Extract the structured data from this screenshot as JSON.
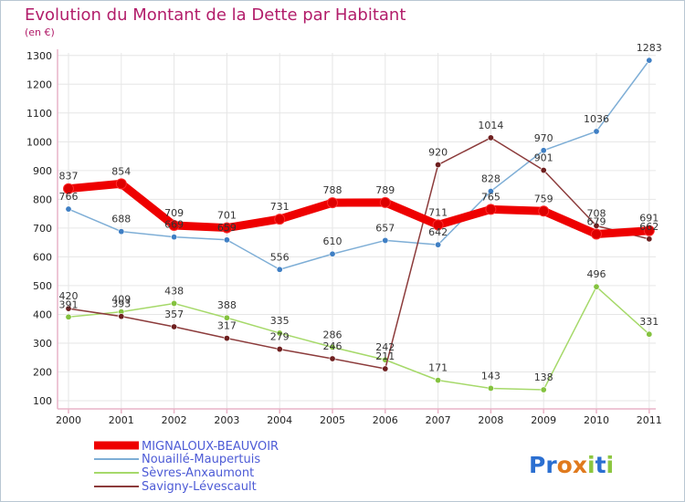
{
  "header": {
    "title": "Evolution du Montant de la Dette par Habitant",
    "subtitle": "(en €)"
  },
  "logo": {
    "letters": [
      "P",
      "r",
      "o",
      "x",
      "i",
      "t",
      "i"
    ]
  },
  "colors": {
    "title": "#b21d6a",
    "axis": "#e8b4c8",
    "grid": "#e6e6e6",
    "legend_text": "#4d5bd6",
    "logo": [
      "#2b6fd1",
      "#2b6fd1",
      "#e07a1e",
      "#e07a1e",
      "#8cc63f",
      "#2b6fd1",
      "#8cc63f"
    ]
  },
  "chart_data": {
    "type": "line",
    "title": "Evolution du Montant de la Dette par Habitant",
    "subtitle": "(en €)",
    "x": [
      2000,
      2001,
      2002,
      2003,
      2004,
      2005,
      2006,
      2007,
      2008,
      2009,
      2010,
      2011
    ],
    "ylim": [
      100,
      1300
    ],
    "yticks": [
      100,
      200,
      300,
      400,
      500,
      600,
      700,
      800,
      900,
      1000,
      1100,
      1200,
      1300
    ],
    "grid": true,
    "legend_position": "bottom-left",
    "series": [
      {
        "name": "MIGNALOUX-BEAUVOIR",
        "color": "#ee0000",
        "marker": "#dd0000",
        "width": 9,
        "values": [
          837,
          854,
          709,
          701,
          731,
          788,
          789,
          711,
          765,
          759,
          679,
          691
        ],
        "labels": [
          "837",
          "854",
          "709",
          "701",
          "731",
          "788",
          "789",
          "711",
          "765",
          "759",
          "679",
          "691"
        ]
      },
      {
        "name": "Nouaillé-Maupertuis",
        "color": "#7eaed6",
        "marker": "#3f7fc4",
        "width": 1.5,
        "values": [
          766,
          688,
          669,
          659,
          556,
          610,
          657,
          642,
          828,
          970,
          1036,
          1283
        ],
        "labels": [
          "766",
          "688",
          "669",
          "659",
          "556",
          "610",
          "657",
          "642",
          "828",
          "970",
          "1036",
          "1283"
        ]
      },
      {
        "name": "Sèvres-Anxaumont",
        "color": "#a6d96a",
        "marker": "#84c23f",
        "width": 1.5,
        "values": [
          391,
          409,
          438,
          388,
          335,
          286,
          242,
          171,
          143,
          138,
          496,
          331
        ],
        "labels": [
          "391",
          "409",
          "438",
          "388",
          "335",
          "286",
          "242",
          "171",
          "143",
          "138",
          "496",
          "331"
        ]
      },
      {
        "name": "Savigny-Lévescault",
        "color": "#8c3b3b",
        "marker": "#6e1f1f",
        "width": 1.5,
        "values": [
          420,
          393,
          357,
          317,
          279,
          246,
          211,
          920,
          1014,
          901,
          708,
          662
        ],
        "labels": [
          "420",
          "393",
          "357",
          "317",
          "279",
          "246",
          "211",
          "920",
          "1014",
          "901",
          "708",
          "662"
        ]
      }
    ]
  }
}
